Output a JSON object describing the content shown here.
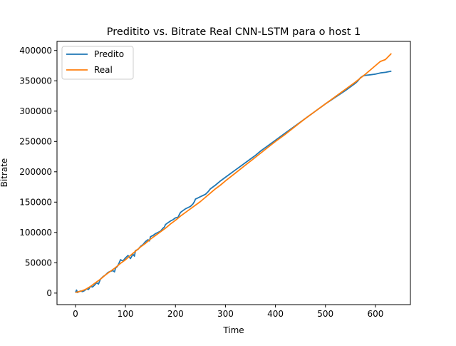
{
  "chart_data": {
    "type": "line",
    "title": "Preditito vs. Bitrate Real CNN-LSTM para o host 1",
    "xlabel": "Time",
    "ylabel": "Bitrate",
    "xlim": [
      -37,
      670
    ],
    "ylim": [
      -19000,
      415000
    ],
    "xticks": [
      0,
      100,
      200,
      300,
      400,
      500,
      600
    ],
    "xtick_labels": [
      "0",
      "100",
      "200",
      "300",
      "400",
      "500",
      "600"
    ],
    "yticks": [
      0,
      50000,
      100000,
      150000,
      200000,
      250000,
      300000,
      350000,
      400000
    ],
    "ytick_labels": [
      "0",
      "50000",
      "100000",
      "150000",
      "200000",
      "250000",
      "300000",
      "350000",
      "400000"
    ],
    "grid": false,
    "legend_position": "upper-left",
    "series": [
      {
        "name": "Predito",
        "color": "#1f77b4",
        "x": [
          0,
          2,
          4,
          6,
          10,
          14,
          18,
          22,
          26,
          30,
          34,
          38,
          42,
          46,
          50,
          55,
          60,
          65,
          70,
          75,
          78,
          80,
          84,
          88,
          90,
          95,
          100,
          105,
          110,
          115,
          118,
          120,
          125,
          130,
          135,
          140,
          145,
          148,
          150,
          155,
          160,
          165,
          170,
          175,
          178,
          180,
          185,
          190,
          195,
          200,
          205,
          208,
          210,
          215,
          220,
          225,
          230,
          235,
          238,
          240,
          245,
          250,
          255,
          260,
          265,
          268,
          270,
          280,
          290,
          300,
          310,
          320,
          330,
          340,
          350,
          360,
          370,
          380,
          390,
          400,
          420,
          440,
          460,
          480,
          500,
          520,
          540,
          560,
          565,
          570,
          575,
          580,
          590,
          600,
          610,
          620,
          632
        ],
        "y": [
          1000,
          5000,
          1000,
          2000,
          3500,
          2500,
          4000,
          7000,
          6000,
          11000,
          10000,
          13000,
          17000,
          15000,
          23000,
          27000,
          30000,
          34000,
          36000,
          37000,
          35000,
          41000,
          44000,
          51000,
          55000,
          53000,
          58000,
          62000,
          57000,
          64000,
          61000,
          70000,
          72000,
          77000,
          80000,
          85000,
          88000,
          86000,
          93000,
          95000,
          98000,
          100000,
          102000,
          107000,
          109000,
          113000,
          116000,
          119000,
          121000,
          124000,
          125000,
          130000,
          133000,
          136000,
          139000,
          141000,
          143000,
          147000,
          151000,
          155000,
          157000,
          159000,
          161000,
          163000,
          167000,
          170000,
          172000,
          178000,
          185000,
          191000,
          197000,
          203000,
          209000,
          215000,
          221000,
          227000,
          234000,
          240000,
          246000,
          252000,
          264000,
          276000,
          288000,
          300000,
          312000,
          323000,
          334000,
          346000,
          350000,
          355000,
          358000,
          359000,
          360000,
          361000,
          363000,
          364000,
          366000
        ]
      },
      {
        "name": "Real",
        "color": "#ff7f0e",
        "x": [
          0,
          10,
          20,
          30,
          40,
          50,
          60,
          70,
          80,
          90,
          100,
          110,
          120,
          130,
          140,
          150,
          160,
          170,
          180,
          190,
          200,
          210,
          220,
          230,
          240,
          250,
          260,
          270,
          280,
          290,
          300,
          320,
          340,
          360,
          380,
          400,
          420,
          440,
          460,
          480,
          500,
          520,
          540,
          560,
          580,
          600,
          610,
          620,
          632
        ],
        "y": [
          1000,
          3000,
          6000,
          11000,
          17000,
          23000,
          30000,
          36000,
          42000,
          49000,
          55000,
          62000,
          69000,
          76000,
          82000,
          89000,
          95000,
          101000,
          107000,
          114000,
          120000,
          127000,
          133000,
          139000,
          145000,
          151000,
          158000,
          165000,
          172000,
          178000,
          185000,
          198000,
          211000,
          224000,
          237000,
          250000,
          262000,
          275000,
          288000,
          300000,
          312000,
          324000,
          336000,
          348000,
          361000,
          375000,
          382000,
          385000,
          395000
        ]
      }
    ]
  }
}
